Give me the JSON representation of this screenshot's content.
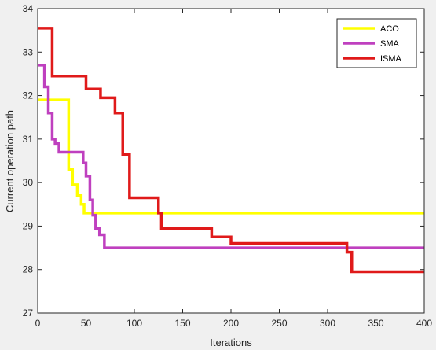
{
  "chart_data": {
    "type": "line",
    "title": "",
    "xlabel": "Iterations",
    "ylabel": "Current operation path",
    "xlim": [
      0,
      400
    ],
    "ylim": [
      27,
      34
    ],
    "x_ticks": [
      "0",
      "50",
      "100",
      "150",
      "200",
      "250",
      "300",
      "350",
      "400"
    ],
    "y_ticks": [
      "27",
      "28",
      "29",
      "30",
      "31",
      "32",
      "33",
      "34"
    ],
    "grid": false,
    "legend_position": "top-right",
    "series": [
      {
        "name": "ACO",
        "color": "#ffff00",
        "x": [
          0,
          32,
          32,
          36,
          36,
          41,
          41,
          45,
          45,
          48,
          48,
          400
        ],
        "y": [
          31.9,
          31.9,
          30.3,
          30.3,
          29.95,
          29.95,
          29.7,
          29.7,
          29.5,
          29.5,
          29.3,
          29.3
        ]
      },
      {
        "name": "SMA",
        "color": "#bf40bf",
        "x": [
          0,
          7,
          7,
          11,
          11,
          15,
          15,
          18,
          18,
          22,
          22,
          47,
          47,
          50,
          50,
          54,
          54,
          57,
          57,
          60,
          60,
          64,
          64,
          69,
          69,
          400
        ],
        "y": [
          32.7,
          32.7,
          32.2,
          32.2,
          31.6,
          31.6,
          31.0,
          31.0,
          30.9,
          30.9,
          30.7,
          30.7,
          30.45,
          30.45,
          30.15,
          30.15,
          29.6,
          29.6,
          29.25,
          29.25,
          28.95,
          28.95,
          28.8,
          28.8,
          28.5,
          28.5
        ]
      },
      {
        "name": "ISMA",
        "color": "#e01a1a",
        "x": [
          0,
          15,
          15,
          50,
          50,
          65,
          65,
          80,
          80,
          88,
          88,
          95,
          95,
          125,
          125,
          128,
          128,
          180,
          180,
          200,
          200,
          320,
          320,
          325,
          325,
          400
        ],
        "y": [
          33.55,
          33.55,
          32.45,
          32.45,
          32.15,
          32.15,
          31.95,
          31.95,
          31.6,
          31.6,
          30.65,
          30.65,
          29.65,
          29.65,
          29.3,
          29.3,
          28.95,
          28.95,
          28.75,
          28.75,
          28.6,
          28.6,
          28.4,
          28.4,
          27.95,
          27.95
        ]
      }
    ]
  }
}
